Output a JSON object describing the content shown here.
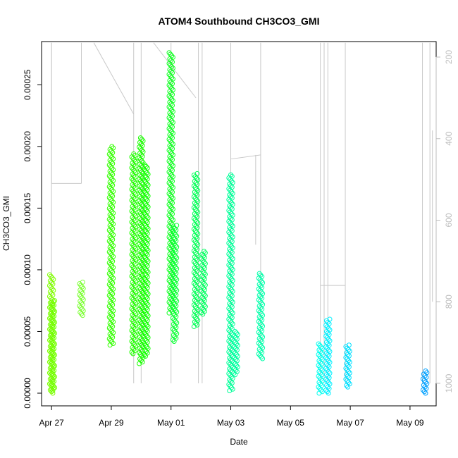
{
  "chart_data": {
    "type": "scatter",
    "title": "ATOM4 Southbound CH3CO3_GMI",
    "xlabel": "Date",
    "ylabel": "CH3CO3_GMI",
    "x_tick_labels": [
      "Apr 27",
      "Apr 29",
      "May 01",
      "May 03",
      "May 05",
      "May 07",
      "May 09"
    ],
    "x_tick_dates": [
      "2018-04-27",
      "2018-04-29",
      "2018-05-01",
      "2018-05-03",
      "2018-05-05",
      "2018-05-07",
      "2018-05-09"
    ],
    "xlim": [
      "2018-04-26T16:00",
      "2018-05-09T21:00"
    ],
    "y_tick_labels": [
      "0.00000",
      "0.00005",
      "0.00010",
      "0.00015",
      "0.00020",
      "0.00025"
    ],
    "ylim": [
      0,
      0.000285
    ],
    "secondary_axis": {
      "side": "right",
      "tick_labels": [
        "200",
        "400",
        "600",
        "800",
        "1000"
      ],
      "range": [
        165,
        1030
      ],
      "inverted": true,
      "color": "#bdbdbd"
    },
    "point_clusters": [
      {
        "t": "2018-04-27T00:00",
        "y_min": 0.0,
        "y_max": 9.6e-05,
        "color": "#80ff00"
      },
      {
        "t": "2018-04-27T01:00",
        "y_min": 2e-06,
        "y_max": 7.5e-05,
        "color": "#70ff00"
      },
      {
        "t": "2018-04-28T00:00",
        "y_min": 6.3e-05,
        "y_max": 9e-05,
        "color": "#7cff33"
      },
      {
        "t": "2018-04-29T00:00",
        "y_min": 3.9e-05,
        "y_max": 0.0002,
        "color": "#33ff00"
      },
      {
        "t": "2018-04-29T18:00",
        "y_min": 3.2e-05,
        "y_max": 0.000194,
        "color": "#22ff00"
      },
      {
        "t": "2018-04-30T00:00",
        "y_min": 2.4e-05,
        "y_max": 0.000207,
        "color": "#1aff00"
      },
      {
        "t": "2018-04-30T04:00",
        "y_min": 3e-05,
        "y_max": 0.000185,
        "color": "#11ff00"
      },
      {
        "t": "2018-05-01T00:00",
        "y_min": 6.5e-05,
        "y_max": 0.000276,
        "color": "#10ff22"
      },
      {
        "t": "2018-05-01T03:00",
        "y_min": 4.2e-05,
        "y_max": 0.000136,
        "color": "#0aff33"
      },
      {
        "t": "2018-05-01T20:00",
        "y_min": 5.4e-05,
        "y_max": 0.000178,
        "color": "#00ff55"
      },
      {
        "t": "2018-05-02T02:00",
        "y_min": 6.4e-05,
        "y_max": 0.000115,
        "color": "#00ff60"
      },
      {
        "t": "2018-05-03T00:00",
        "y_min": 2e-06,
        "y_max": 0.000177,
        "color": "#00ff99"
      },
      {
        "t": "2018-05-03T04:00",
        "y_min": 1.5e-05,
        "y_max": 5e-05,
        "color": "#00ffa0"
      },
      {
        "t": "2018-05-04T00:00",
        "y_min": 2.8e-05,
        "y_max": 9.7e-05,
        "color": "#00ffaa"
      },
      {
        "t": "2018-05-06T00:00",
        "y_min": 0.0,
        "y_max": 4e-05,
        "color": "#00ffee"
      },
      {
        "t": "2018-05-06T06:00",
        "y_min": 0.0,
        "y_max": 6e-05,
        "color": "#00f0ff"
      },
      {
        "t": "2018-05-06T22:00",
        "y_min": 5e-06,
        "y_max": 3.9e-05,
        "color": "#00e0ff"
      },
      {
        "t": "2018-05-09T12:00",
        "y_min": 0.0,
        "y_max": 1.8e-05,
        "color": "#00a0ff"
      }
    ]
  }
}
